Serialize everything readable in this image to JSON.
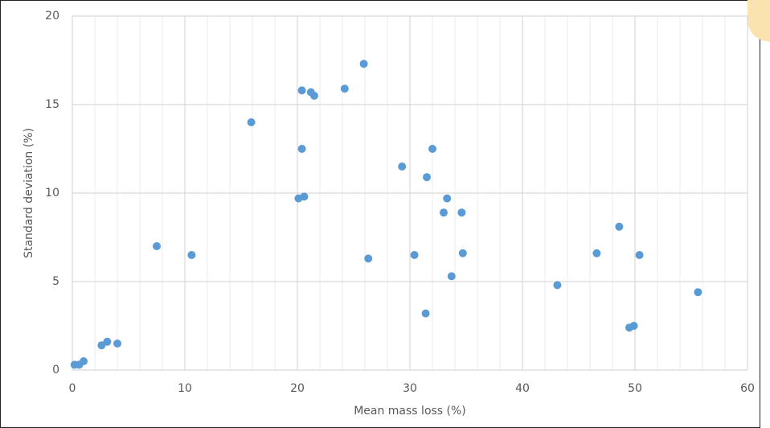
{
  "chart_data": {
    "type": "scatter",
    "x_label": "Mean mass loss (%)",
    "y_label": "Standard deviation (%)",
    "color": "#5b9bd5",
    "grid": true,
    "xlim": [
      0,
      60
    ],
    "xticks": [
      0,
      10,
      20,
      30,
      40,
      50,
      60
    ],
    "ylim": [
      0,
      20
    ],
    "yticks": [
      0,
      5,
      10,
      15,
      20
    ],
    "x": [
      0.2,
      0.6,
      1.0,
      2.6,
      3.1,
      4.0,
      7.5,
      10.6,
      15.9,
      20.4,
      20.1,
      20.6,
      20.4,
      21.2,
      21.5,
      24.2,
      25.9,
      26.3,
      29.3,
      30.4,
      31.4,
      31.5,
      32.0,
      33.3,
      33.0,
      33.7,
      34.6,
      34.7,
      43.1,
      46.6,
      48.6,
      49.5,
      49.9,
      50.4,
      55.6
    ],
    "values": [
      0.3,
      0.3,
      0.5,
      1.4,
      1.6,
      1.5,
      7.0,
      6.5,
      14.0,
      15.8,
      9.7,
      9.8,
      12.5,
      15.7,
      15.5,
      15.9,
      17.3,
      6.3,
      11.5,
      6.5,
      3.2,
      10.9,
      12.5,
      9.7,
      8.9,
      5.3,
      8.9,
      6.6,
      4.8,
      6.6,
      8.1,
      2.4,
      2.5,
      6.5,
      4.4
    ]
  }
}
